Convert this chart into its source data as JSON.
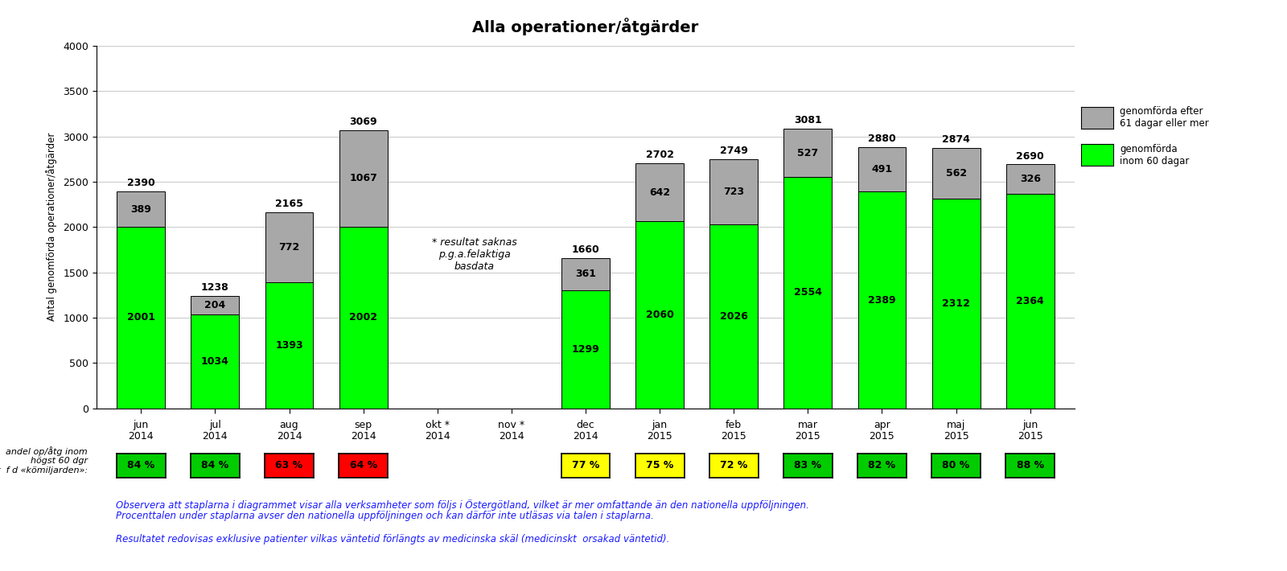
{
  "title": "Alla operationer/åtgärder",
  "ylabel": "Antal genomförda operationer/åtgärder",
  "ylim": [
    0,
    4000
  ],
  "yticks": [
    0,
    500,
    1000,
    1500,
    2000,
    2500,
    3000,
    3500,
    4000
  ],
  "cat_top": [
    "jun",
    "jul",
    "aug",
    "sep",
    "okt *",
    "nov *",
    "dec",
    "jan",
    "feb",
    "mar",
    "apr",
    "maj",
    "jun"
  ],
  "cat_bot": [
    "2014",
    "2014",
    "2014",
    "2014",
    "2014",
    "2014",
    "2014",
    "2015",
    "2015",
    "2015",
    "2015",
    "2015",
    "2015"
  ],
  "green_values": [
    2001,
    1034,
    1393,
    2002,
    0,
    0,
    1299,
    2060,
    2026,
    2554,
    2389,
    2312,
    2364
  ],
  "gray_values": [
    389,
    204,
    772,
    1067,
    0,
    0,
    361,
    642,
    723,
    527,
    491,
    562,
    326
  ],
  "totals": [
    2390,
    1238,
    2165,
    3069,
    0,
    0,
    1660,
    2702,
    2749,
    3081,
    2880,
    2874,
    2690
  ],
  "percentages": [
    "84 %",
    "84 %",
    "63 %",
    "64 %",
    "",
    "",
    "77 %",
    "75 %",
    "72 %",
    "83 %",
    "82 %",
    "80 %",
    "88 %"
  ],
  "pct_colors": [
    "#00cc00",
    "#00cc00",
    "#ff0000",
    "#ff0000",
    "",
    "",
    "#ffff00",
    "#ffff00",
    "#ffff00",
    "#00cc00",
    "#00cc00",
    "#00cc00",
    "#00cc00"
  ],
  "missing_text": "* resultat saknas\np.g.a.felaktiga\nbasdata",
  "legend_gray": "genomförda efter\n61 dagar eller mer",
  "legend_green": "genomförda\ninom 60 dagar",
  "note1": "Observera att staplarna i diagrammet visar alla verksamheter som följs i Östergötland, vilket är mer omfattande än den nationella uppföljningen.",
  "note2": "Procenttalen under staplarna avser den nationella uppföljningen och kan därför inte utläsas via talen i staplarna.",
  "note3": "Resultatet redovisas exklusive patienter vilkas väntetid förlängts av medicinska skäl (medicinskt  orsakad väntetid).",
  "label_row1": "andel op/åtg inom",
  "label_row2": "högst 60 dgr",
  "label_row3": "enligt  f d «kömiljarden»:",
  "green_color": "#00ff00",
  "gray_color": "#a8a8a8",
  "bar_width": 0.65,
  "background_color": "#ffffff"
}
